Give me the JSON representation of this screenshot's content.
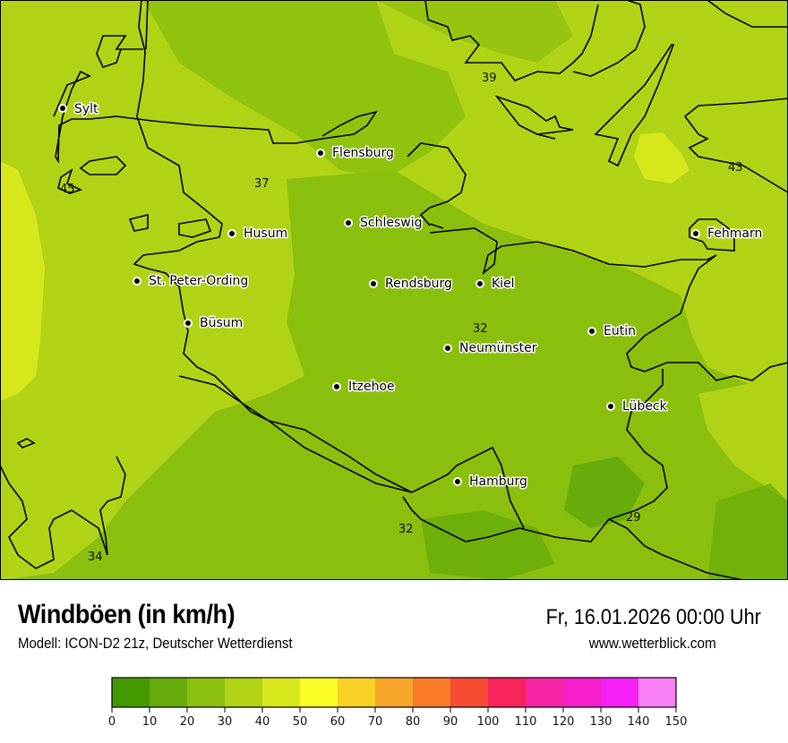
{
  "header": {
    "title": "Windböen (in km/h)",
    "subtitle": "Modell: ICON-D2 21z, Deutscher Wetterdienst",
    "datetime": "Fr, 16.01.2026 00:00 Uhr",
    "website": "www.wetterblick.com"
  },
  "map": {
    "cities": [
      {
        "name": "Sylt"
      },
      {
        "name": "Flensburg"
      },
      {
        "name": "Husum"
      },
      {
        "name": "Schleswig"
      },
      {
        "name": "Fehmarn"
      },
      {
        "name": "St. Peter-Ording"
      },
      {
        "name": "Rendsburg"
      },
      {
        "name": "Kiel"
      },
      {
        "name": "Büsum"
      },
      {
        "name": "Neumünster"
      },
      {
        "name": "Eutin"
      },
      {
        "name": "Itzehoe"
      },
      {
        "name": "Lübeck"
      },
      {
        "name": "Hamburg"
      }
    ],
    "values": [
      "39",
      "37",
      "45",
      "43",
      "32",
      "32",
      "29",
      "34"
    ]
  },
  "legend": {
    "unit": "km/h",
    "ticks": [
      "0",
      "10",
      "20",
      "30",
      "40",
      "50",
      "60",
      "70",
      "80",
      "90",
      "100",
      "110",
      "120",
      "130",
      "140",
      "150"
    ],
    "colors": [
      "#439a00",
      "#66ac0a",
      "#8bbf0d",
      "#b1d316",
      "#d6e81b",
      "#fafd25",
      "#f9d124",
      "#f8a52c",
      "#f97b2a",
      "#f64c31",
      "#f7235a",
      "#f424a2",
      "#f520cb",
      "#f61ff6",
      "#f980f7"
    ]
  }
}
